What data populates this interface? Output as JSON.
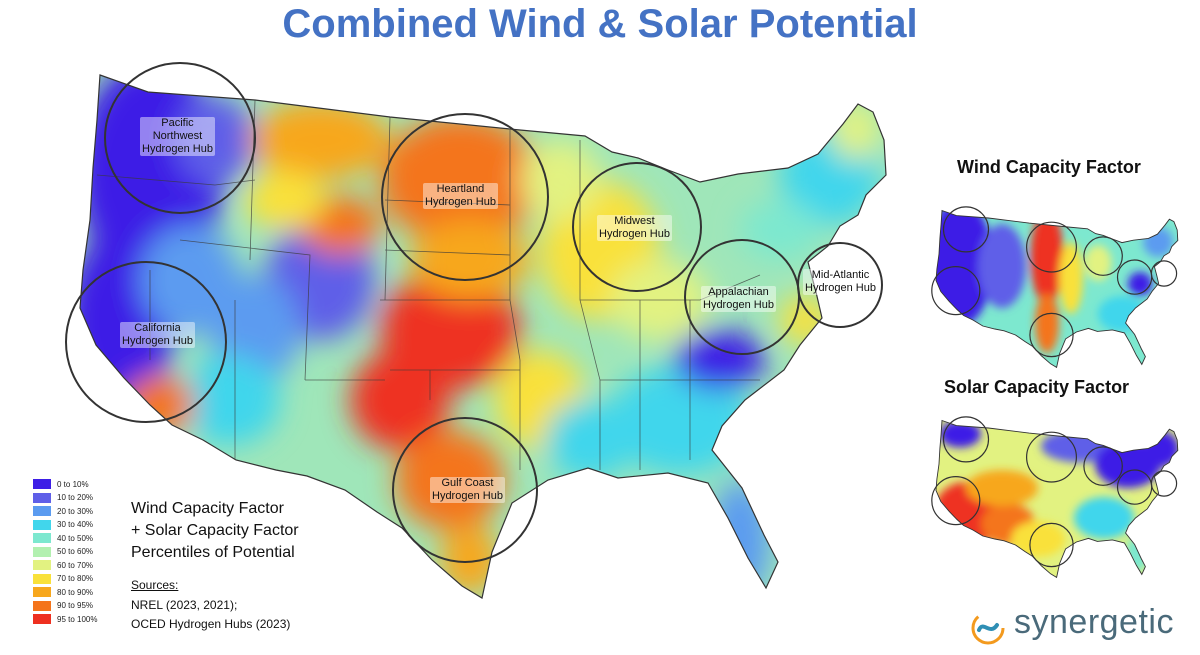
{
  "title": "Combined Wind & Solar Potential",
  "hubs": [
    {
      "id": "pacific-northwest",
      "label": "Pacific\nNorthwest\nHydrogen Hub"
    },
    {
      "id": "heartland",
      "label": "Heartland\nHydrogen Hub"
    },
    {
      "id": "midwest",
      "label": "Midwest\nHydrogen Hub"
    },
    {
      "id": "california",
      "label": "California\nHydrogen Hub"
    },
    {
      "id": "appalachian",
      "label": "Appalachian\nHydrogen Hub"
    },
    {
      "id": "mid-atlantic",
      "label": "Mid-Atlantic\nHydrogen Hub"
    },
    {
      "id": "gulf-coast",
      "label": "Gulf Coast\nHydrogen Hub"
    }
  ],
  "legend": [
    {
      "label": "0 to 10%",
      "color": "#3d1ee6"
    },
    {
      "label": "10 to 20%",
      "color": "#5f5fe8"
    },
    {
      "label": "20 to 30%",
      "color": "#5b9bf0"
    },
    {
      "label": "30 to 40%",
      "color": "#41d6ec"
    },
    {
      "label": "40 to 50%",
      "color": "#7de8cf"
    },
    {
      "label": "50 to 60%",
      "color": "#b2f0b0"
    },
    {
      "label": "60 to 70%",
      "color": "#e2f281"
    },
    {
      "label": "70 to 80%",
      "color": "#f9e13a"
    },
    {
      "label": "80 to 90%",
      "color": "#f7a71d"
    },
    {
      "label": "90 to 95%",
      "color": "#f4741b"
    },
    {
      "label": "95 to 100%",
      "color": "#ee3020"
    }
  ],
  "caption": {
    "line1": "Wind Capacity Factor",
    "line2": "+ Solar Capacity Factor",
    "line3": "Percentiles of Potential"
  },
  "sources": {
    "heading": "Sources:",
    "line1": "NREL (2023, 2021);",
    "line2": "OCED Hydrogen Hubs (2023)"
  },
  "insets": {
    "wind_title": "Wind Capacity Factor",
    "solar_title": "Solar Capacity Factor"
  },
  "brand": {
    "name": "synergetic",
    "color": "#4a6a7a",
    "logo_colors": [
      "#f39a1e",
      "#2f8fb5"
    ]
  },
  "title_color": "#4472c4"
}
